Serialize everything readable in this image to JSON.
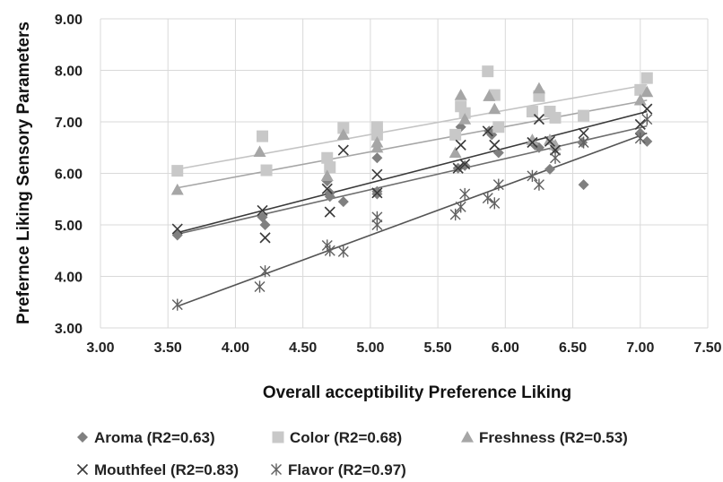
{
  "chart_data": {
    "type": "scatter",
    "title": "",
    "xlabel": "Overall acceptibility Preference Liking",
    "ylabel": "Prefernce Liking Sensory Parameters",
    "xlim": [
      3.0,
      7.5
    ],
    "ylim": [
      3.0,
      9.0
    ],
    "x_ticks": [
      "3.00",
      "3.50",
      "4.00",
      "4.50",
      "5.00",
      "5.50",
      "6.00",
      "6.50",
      "7.00",
      "7.50"
    ],
    "y_ticks": [
      "3.00",
      "4.00",
      "5.00",
      "6.00",
      "7.00",
      "8.00",
      "9.00"
    ],
    "grid": true,
    "legend_position": "bottom",
    "series": [
      {
        "name": "Aroma (R2=0.63)",
        "marker": "diamond",
        "color": "#808080",
        "trend_color": "#6e6e6e",
        "trend": [
          [
            3.57,
            4.82
          ],
          [
            7.05,
            6.92
          ]
        ],
        "points": [
          [
            3.57,
            4.8
          ],
          [
            4.2,
            5.15
          ],
          [
            4.22,
            5.0
          ],
          [
            4.68,
            5.85
          ],
          [
            4.7,
            5.62
          ],
          [
            4.7,
            5.55
          ],
          [
            4.8,
            5.45
          ],
          [
            5.05,
            6.3
          ],
          [
            5.05,
            5.65
          ],
          [
            5.05,
            5.6
          ],
          [
            5.65,
            6.1
          ],
          [
            5.67,
            6.9
          ],
          [
            5.7,
            6.15
          ],
          [
            5.88,
            6.82
          ],
          [
            5.9,
            6.75
          ],
          [
            5.95,
            6.4
          ],
          [
            6.22,
            6.55
          ],
          [
            6.25,
            6.5
          ],
          [
            6.33,
            6.08
          ],
          [
            6.37,
            6.48
          ],
          [
            6.57,
            6.6
          ],
          [
            6.58,
            5.78
          ],
          [
            7.0,
            6.78
          ],
          [
            7.05,
            6.62
          ]
        ]
      },
      {
        "name": "Color (R2=0.68)",
        "marker": "square",
        "color": "#c8c8c8",
        "trend_color": "#c4c4c4",
        "trend": [
          [
            3.57,
            6.08
          ],
          [
            7.05,
            7.72
          ]
        ],
        "points": [
          [
            3.57,
            6.05
          ],
          [
            4.2,
            6.72
          ],
          [
            4.23,
            6.06
          ],
          [
            4.68,
            6.3
          ],
          [
            4.7,
            6.12
          ],
          [
            4.8,
            6.88
          ],
          [
            5.05,
            6.9
          ],
          [
            5.05,
            6.75
          ],
          [
            5.63,
            6.75
          ],
          [
            5.67,
            7.3
          ],
          [
            5.7,
            7.17
          ],
          [
            5.87,
            7.98
          ],
          [
            5.92,
            7.52
          ],
          [
            5.95,
            6.9
          ],
          [
            6.2,
            7.2
          ],
          [
            6.25,
            7.5
          ],
          [
            6.33,
            7.2
          ],
          [
            6.37,
            7.08
          ],
          [
            6.58,
            7.12
          ],
          [
            7.0,
            7.62
          ],
          [
            7.05,
            7.85
          ]
        ]
      },
      {
        "name": "Freshness (R2=0.53)",
        "marker": "triangle",
        "color": "#a6a6a6",
        "trend_color": "#a6a6a6",
        "trend": [
          [
            3.57,
            5.72
          ],
          [
            7.05,
            7.42
          ]
        ],
        "points": [
          [
            3.57,
            5.68
          ],
          [
            4.18,
            6.42
          ],
          [
            4.68,
            5.95
          ],
          [
            4.8,
            6.75
          ],
          [
            5.05,
            6.6
          ],
          [
            5.05,
            6.5
          ],
          [
            5.63,
            6.4
          ],
          [
            5.67,
            7.52
          ],
          [
            5.7,
            7.05
          ],
          [
            5.88,
            7.5
          ],
          [
            5.92,
            7.25
          ],
          [
            6.2,
            6.65
          ],
          [
            6.25,
            7.65
          ],
          [
            6.33,
            6.65
          ],
          [
            6.37,
            6.55
          ],
          [
            7.0,
            7.42
          ],
          [
            7.05,
            7.58
          ]
        ]
      },
      {
        "name": "Mouthfeel (R2=0.83)",
        "marker": "x",
        "color": "#3a3a3a",
        "trend_color": "#3a3a3a",
        "trend": [
          [
            3.57,
            4.85
          ],
          [
            7.05,
            7.2
          ]
        ],
        "points": [
          [
            3.57,
            4.92
          ],
          [
            4.2,
            5.28
          ],
          [
            4.22,
            4.75
          ],
          [
            4.68,
            5.7
          ],
          [
            4.7,
            5.25
          ],
          [
            4.8,
            6.45
          ],
          [
            5.05,
            5.98
          ],
          [
            5.05,
            5.62
          ],
          [
            5.65,
            6.1
          ],
          [
            5.67,
            6.55
          ],
          [
            5.7,
            6.18
          ],
          [
            5.87,
            6.82
          ],
          [
            5.92,
            6.55
          ],
          [
            6.2,
            6.6
          ],
          [
            6.25,
            7.05
          ],
          [
            6.33,
            6.62
          ],
          [
            6.37,
            6.45
          ],
          [
            6.58,
            6.78
          ],
          [
            7.0,
            6.95
          ],
          [
            7.05,
            7.25
          ]
        ]
      },
      {
        "name": "Flavor (R2=0.97)",
        "marker": "asterisk",
        "color": "#606060",
        "trend_color": "#555555",
        "trend": [
          [
            3.57,
            3.42
          ],
          [
            7.05,
            6.78
          ]
        ],
        "points": [
          [
            3.57,
            3.45
          ],
          [
            4.18,
            3.8
          ],
          [
            4.22,
            4.1
          ],
          [
            4.68,
            4.6
          ],
          [
            4.7,
            4.5
          ],
          [
            4.8,
            4.48
          ],
          [
            5.05,
            5.15
          ],
          [
            5.05,
            5.0
          ],
          [
            5.63,
            5.2
          ],
          [
            5.67,
            5.35
          ],
          [
            5.7,
            5.6
          ],
          [
            5.87,
            5.52
          ],
          [
            5.92,
            5.42
          ],
          [
            5.95,
            5.78
          ],
          [
            6.2,
            5.95
          ],
          [
            6.25,
            5.78
          ],
          [
            6.37,
            6.3
          ],
          [
            6.58,
            6.6
          ],
          [
            7.0,
            6.68
          ],
          [
            7.05,
            7.05
          ]
        ]
      }
    ]
  }
}
